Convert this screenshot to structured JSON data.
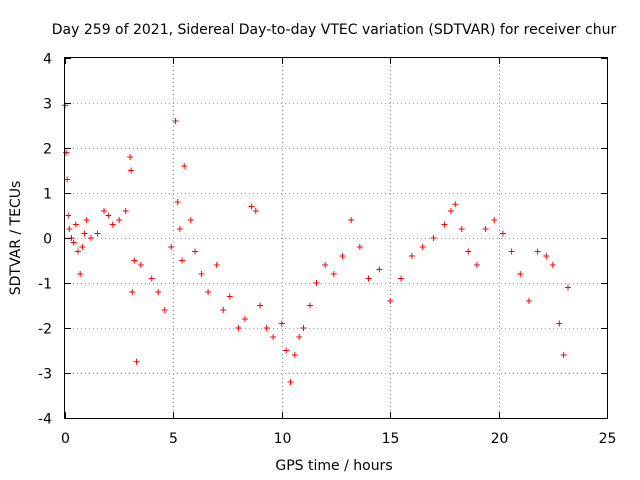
{
  "chart_data": {
    "type": "scatter",
    "title": "Day 259 of 2021, Sidereal Day-to-day VTEC variation (SDTVAR) for receiver chur",
    "xlabel": "GPS time / hours",
    "ylabel": "SDTVAR / TECUs",
    "xlim": [
      0,
      25
    ],
    "ylim": [
      -4,
      4
    ],
    "xticks": [
      "0",
      "5",
      "10",
      "15",
      "20",
      "25"
    ],
    "yticks": [
      "-4",
      "-3",
      "-2",
      "-1",
      "0",
      "1",
      "2",
      "3",
      "4"
    ],
    "grid": true,
    "marker": "+",
    "color": "#ff0000",
    "series": [
      {
        "name": "SDTVAR",
        "x": [
          0.0,
          0.05,
          0.1,
          0.15,
          0.2,
          0.3,
          0.4,
          0.5,
          0.6,
          0.7,
          0.8,
          0.9,
          1.0,
          1.2,
          1.5,
          1.8,
          2.0,
          2.2,
          2.5,
          2.8,
          3.0,
          3.05,
          3.1,
          3.2,
          3.3,
          3.5,
          4.0,
          4.3,
          4.6,
          4.9,
          5.1,
          5.2,
          5.3,
          5.4,
          5.5,
          5.8,
          6.0,
          6.3,
          6.6,
          7.0,
          7.3,
          7.6,
          8.0,
          8.3,
          8.6,
          8.8,
          9.0,
          9.3,
          9.6,
          10.0,
          10.2,
          10.4,
          10.6,
          10.8,
          11.0,
          11.3,
          11.6,
          12.0,
          12.4,
          12.8,
          13.2,
          13.6,
          14.0,
          14.5,
          15.0,
          15.5,
          16.0,
          16.5,
          17.0,
          17.5,
          17.8,
          18.0,
          18.3,
          18.6,
          19.0,
          19.4,
          19.8,
          20.2,
          20.6,
          21.0,
          21.4,
          21.8,
          22.2,
          22.5,
          22.8,
          23.0,
          23.2
        ],
        "values": [
          2.95,
          1.9,
          1.3,
          0.5,
          0.2,
          0.0,
          -0.1,
          0.3,
          -0.3,
          -0.8,
          -0.2,
          0.1,
          0.4,
          0.0,
          0.1,
          0.6,
          0.5,
          0.3,
          0.4,
          0.6,
          1.8,
          1.5,
          -1.2,
          -0.5,
          -2.75,
          -0.6,
          -0.9,
          -1.2,
          -1.6,
          -0.2,
          2.6,
          0.8,
          0.2,
          -0.5,
          1.6,
          0.4,
          -0.3,
          -0.8,
          -1.2,
          -0.6,
          -1.6,
          -1.3,
          -2.0,
          -1.8,
          0.7,
          0.6,
          -1.5,
          -2.0,
          -2.2,
          -1.9,
          -2.5,
          -3.2,
          -2.6,
          -2.2,
          -2.0,
          -1.5,
          -1.0,
          -0.6,
          -0.8,
          -0.4,
          0.4,
          -0.2,
          -0.9,
          -0.7,
          -1.4,
          -0.9,
          -0.4,
          -0.2,
          0.0,
          0.3,
          0.6,
          0.75,
          0.2,
          -0.3,
          -0.6,
          0.2,
          0.4,
          0.1,
          -0.3,
          -0.8,
          -1.4,
          -0.3,
          -0.4,
          -0.6,
          -1.9,
          -2.6,
          -1.1
        ]
      }
    ]
  }
}
